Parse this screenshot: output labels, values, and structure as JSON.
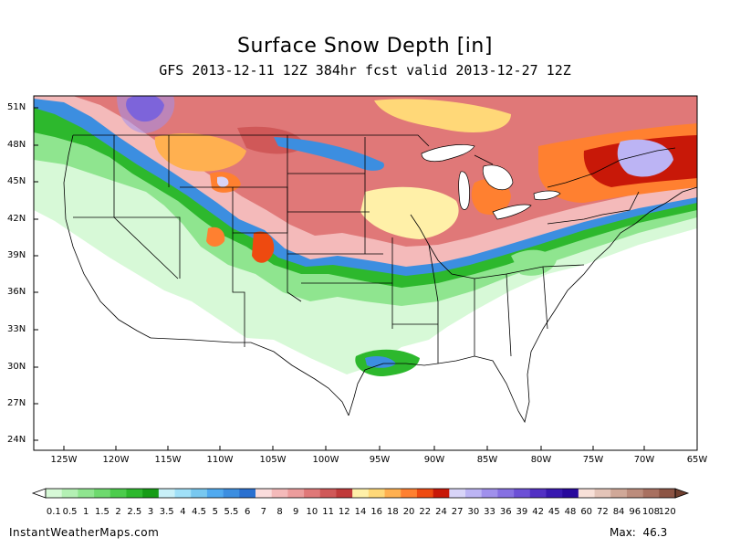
{
  "title": "Surface Snow Depth [in]",
  "subtitle": "GFS 2013-12-11 12Z 384hr fcst valid 2013-12-27 12Z",
  "map": {
    "region": "Continental United States",
    "lat_labels": [
      "51N",
      "48N",
      "45N",
      "42N",
      "39N",
      "36N",
      "33N",
      "30N",
      "27N",
      "24N"
    ],
    "lon_labels": [
      "125W",
      "120W",
      "115W",
      "110W",
      "105W",
      "100W",
      "95W",
      "90W",
      "85W",
      "80W",
      "75W",
      "70W",
      "65W"
    ]
  },
  "colorbar": {
    "labels": [
      "0.1",
      "0.5",
      "1",
      "1.5",
      "2",
      "2.5",
      "3",
      "3.5",
      "4",
      "4.5",
      "5",
      "5.5",
      "6",
      "7",
      "8",
      "9",
      "10",
      "11",
      "12",
      "14",
      "16",
      "18",
      "20",
      "22",
      "24",
      "27",
      "30",
      "33",
      "36",
      "39",
      "42",
      "45",
      "48",
      "60",
      "72",
      "84",
      "96",
      "108",
      "120"
    ],
    "colors": [
      "#d7f9d7",
      "#b4f0b4",
      "#8fe58f",
      "#6ed96e",
      "#4ccc4c",
      "#2db82d",
      "#169c16",
      "#c8f0f8",
      "#a0e0f8",
      "#78c8f0",
      "#50aaf0",
      "#3c8ee0",
      "#2a70d0",
      "#fadcdc",
      "#f4baba",
      "#ec9c9c",
      "#e07878",
      "#d05858",
      "#c03a3a",
      "#fff0a8",
      "#ffd878",
      "#ffb050",
      "#ff8030",
      "#ee4a10",
      "#c81808",
      "#d8d4f8",
      "#bcb4f4",
      "#a090ec",
      "#8670e2",
      "#6c50d6",
      "#5230c4",
      "#3818b0",
      "#28089c",
      "#f8e0d8",
      "#e4c4b8",
      "#d0a898",
      "#bc8c7c",
      "#a87060",
      "#8c5444"
    ],
    "arrow_left_color": "#ffffff",
    "arrow_right_color": "#704030"
  },
  "footer": {
    "site": "InstantWeatherMaps.com",
    "max_label": "Max:",
    "max_value": "46.3"
  }
}
